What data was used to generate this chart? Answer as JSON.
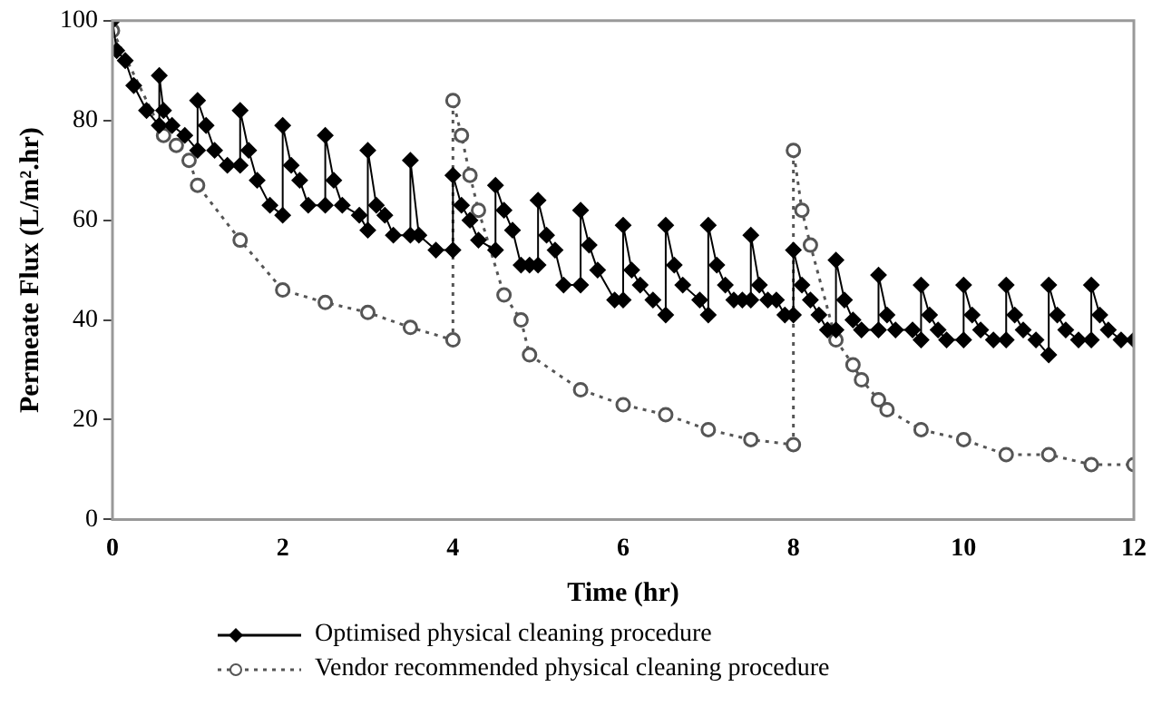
{
  "chart_data": {
    "type": "line",
    "xlabel": "Time (hr)",
    "ylabel": "Permeate Flux (L/m².hr)",
    "xlim": [
      0,
      12
    ],
    "xticks": [
      0,
      2,
      4,
      6,
      8,
      10,
      12
    ],
    "ylim": [
      0,
      100
    ],
    "yticks": [
      0,
      20,
      40,
      60,
      80,
      100
    ],
    "grid": false,
    "legend": "bottom",
    "series": [
      {
        "name": "Optimised physical cleaning procedure",
        "color": "#000000",
        "marker": "diamond",
        "line_style": "solid",
        "x": [
          0,
          0.05,
          0.15,
          0.25,
          0.4,
          0.55,
          0.55,
          0.6,
          0.7,
          0.85,
          1.0,
          1.0,
          1.1,
          1.2,
          1.35,
          1.5,
          1.5,
          1.6,
          1.7,
          1.85,
          2.0,
          2.0,
          2.1,
          2.2,
          2.3,
          2.5,
          2.5,
          2.6,
          2.7,
          2.9,
          3.0,
          3.0,
          3.1,
          3.2,
          3.3,
          3.5,
          3.5,
          3.6,
          3.8,
          4.0,
          4.0,
          4.1,
          4.2,
          4.3,
          4.5,
          4.5,
          4.6,
          4.7,
          4.8,
          4.9,
          5.0,
          5.0,
          5.1,
          5.2,
          5.3,
          5.5,
          5.5,
          5.6,
          5.7,
          5.9,
          6.0,
          6.0,
          6.1,
          6.2,
          6.35,
          6.5,
          6.5,
          6.6,
          6.7,
          6.9,
          7.0,
          7.0,
          7.1,
          7.2,
          7.3,
          7.4,
          7.5,
          7.5,
          7.6,
          7.7,
          7.8,
          7.9,
          8.0,
          8.0,
          8.1,
          8.2,
          8.3,
          8.4,
          8.5,
          8.5,
          8.6,
          8.7,
          8.8,
          9.0,
          9.0,
          9.1,
          9.2,
          9.4,
          9.5,
          9.5,
          9.6,
          9.7,
          9.8,
          10.0,
          10.0,
          10.1,
          10.2,
          10.35,
          10.5,
          10.5,
          10.6,
          10.7,
          10.85,
          11.0,
          11.0,
          11.1,
          11.2,
          11.35,
          11.5,
          11.5,
          11.6,
          11.7,
          11.85,
          12.0
        ],
        "values": [
          100,
          94,
          92,
          87,
          82,
          79,
          89,
          82,
          79,
          77,
          74,
          84,
          79,
          74,
          71,
          71,
          82,
          74,
          68,
          63,
          61,
          79,
          71,
          68,
          63,
          63,
          77,
          68,
          63,
          61,
          58,
          74,
          63,
          61,
          57,
          57,
          72,
          57,
          54,
          54,
          69,
          63,
          60,
          56,
          54,
          67,
          62,
          58,
          51,
          51,
          51,
          64,
          57,
          54,
          47,
          47,
          62,
          55,
          50,
          44,
          44,
          59,
          50,
          47,
          44,
          41,
          59,
          51,
          47,
          44,
          41,
          59,
          51,
          47,
          44,
          44,
          44,
          57,
          47,
          44,
          44,
          41,
          41,
          54,
          47,
          44,
          41,
          38,
          38,
          52,
          44,
          40,
          38,
          38,
          49,
          41,
          38,
          38,
          36,
          47,
          41,
          38,
          36,
          36,
          47,
          41,
          38,
          36,
          36,
          47,
          41,
          38,
          36,
          33,
          47,
          41,
          38,
          36,
          36,
          47,
          41,
          38,
          36,
          36
        ]
      },
      {
        "name": "Vendor recommended physical cleaning procedure",
        "color": "#555555",
        "marker": "circle",
        "line_style": "dotted",
        "x": [
          0,
          0.6,
          0.75,
          0.9,
          1.0,
          1.5,
          2.0,
          2.5,
          3.0,
          3.5,
          4.0,
          4.0,
          4.1,
          4.2,
          4.3,
          4.6,
          4.8,
          4.9,
          5.5,
          6.0,
          6.5,
          7.0,
          7.5,
          8.0,
          8.0,
          8.1,
          8.2,
          8.5,
          8.7,
          8.8,
          9.0,
          9.1,
          9.5,
          10.0,
          10.5,
          11.0,
          11.5,
          12.0
        ],
        "values": [
          98,
          77,
          75,
          72,
          67,
          56,
          46,
          43.5,
          41.5,
          38.5,
          36,
          84,
          77,
          69,
          62,
          45,
          40,
          33,
          26,
          23,
          21,
          18,
          16,
          15,
          74,
          62,
          55,
          36,
          31,
          28,
          24,
          22,
          18,
          16,
          13,
          13,
          11,
          11
        ]
      }
    ]
  }
}
